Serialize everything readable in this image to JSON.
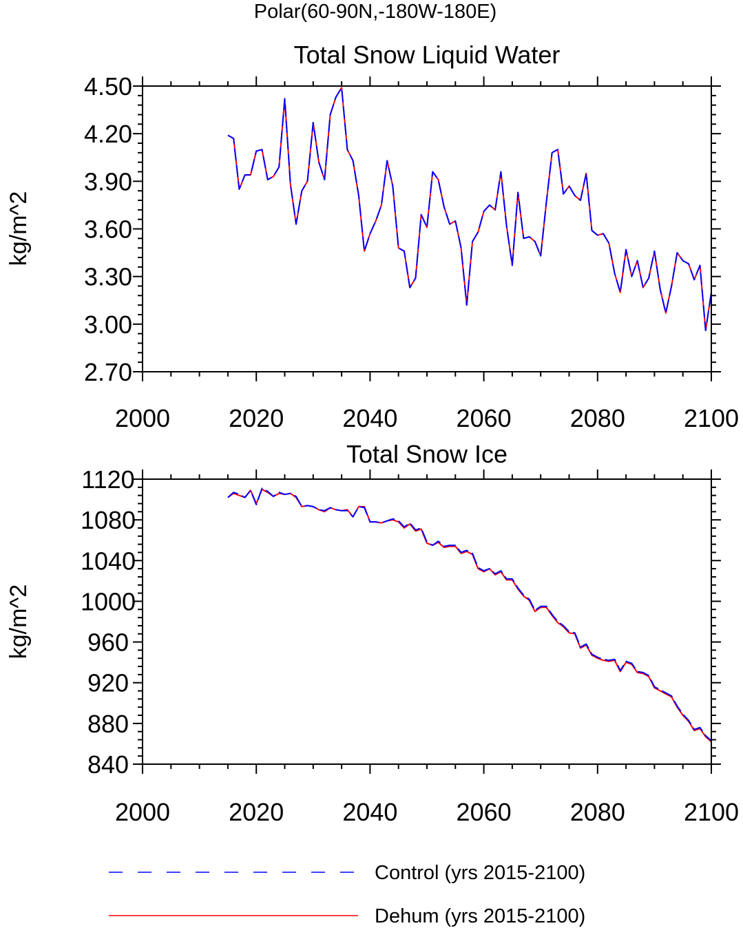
{
  "figure": {
    "main_title": "Polar(60-90N,-180W-180E)"
  },
  "chart_data": [
    {
      "type": "line",
      "title": "Total Snow Liquid Water",
      "xlabel": "",
      "ylabel": "kg/m^2",
      "xlim": [
        2000,
        2100
      ],
      "ylim": [
        2.7,
        4.5
      ],
      "xticks": [
        "2000",
        "2020",
        "2040",
        "2060",
        "2080",
        "2100"
      ],
      "yticks": [
        "2.70",
        "3.00",
        "3.30",
        "3.60",
        "3.90",
        "4.20",
        "4.50"
      ],
      "x": [
        2015,
        2016,
        2017,
        2018,
        2019,
        2020,
        2021,
        2022,
        2023,
        2024,
        2025,
        2026,
        2027,
        2028,
        2029,
        2030,
        2031,
        2032,
        2033,
        2034,
        2035,
        2036,
        2037,
        2038,
        2039,
        2040,
        2041,
        2042,
        2043,
        2044,
        2045,
        2046,
        2047,
        2048,
        2049,
        2050,
        2051,
        2052,
        2053,
        2054,
        2055,
        2056,
        2057,
        2058,
        2059,
        2060,
        2061,
        2062,
        2063,
        2064,
        2065,
        2066,
        2067,
        2068,
        2069,
        2070,
        2071,
        2072,
        2073,
        2074,
        2075,
        2076,
        2077,
        2078,
        2079,
        2080,
        2081,
        2082,
        2083,
        2084,
        2085,
        2086,
        2087,
        2088,
        2089,
        2090,
        2091,
        2092,
        2093,
        2094,
        2095,
        2096,
        2097,
        2098,
        2099,
        2100
      ],
      "series": [
        {
          "name": "Control (yrs 2015-2100)",
          "color": "#0000ff",
          "dash": "dashed",
          "values": [
            4.19,
            4.17,
            3.85,
            3.94,
            3.94,
            4.09,
            4.1,
            3.91,
            3.93,
            3.99,
            4.42,
            3.88,
            3.63,
            3.84,
            3.9,
            4.27,
            4.02,
            3.91,
            4.32,
            4.43,
            4.49,
            4.1,
            4.03,
            3.81,
            3.46,
            3.57,
            3.65,
            3.75,
            4.03,
            3.87,
            3.48,
            3.46,
            3.23,
            3.29,
            3.69,
            3.61,
            3.96,
            3.91,
            3.74,
            3.63,
            3.65,
            3.48,
            3.12,
            3.52,
            3.58,
            3.71,
            3.75,
            3.72,
            3.96,
            3.62,
            3.37,
            3.83,
            3.54,
            3.55,
            3.52,
            3.43,
            3.77,
            4.08,
            4.1,
            3.82,
            3.87,
            3.81,
            3.78,
            3.95,
            3.59,
            3.56,
            3.57,
            3.51,
            3.32,
            3.2,
            3.47,
            3.3,
            3.4,
            3.23,
            3.29,
            3.46,
            3.22,
            3.07,
            3.24,
            3.45,
            3.4,
            3.38,
            3.28,
            3.37,
            2.96,
            3.2
          ]
        },
        {
          "name": "Dehum (yrs 2015-2100)",
          "color": "#ff0000",
          "dash": "solid",
          "values": [
            4.19,
            4.17,
            3.85,
            3.94,
            3.94,
            4.09,
            4.1,
            3.91,
            3.93,
            3.99,
            4.42,
            3.88,
            3.63,
            3.84,
            3.9,
            4.27,
            4.02,
            3.91,
            4.32,
            4.43,
            4.49,
            4.1,
            4.03,
            3.81,
            3.46,
            3.57,
            3.65,
            3.75,
            4.03,
            3.87,
            3.48,
            3.46,
            3.23,
            3.29,
            3.69,
            3.61,
            3.96,
            3.91,
            3.74,
            3.63,
            3.65,
            3.48,
            3.12,
            3.52,
            3.58,
            3.71,
            3.75,
            3.72,
            3.96,
            3.62,
            3.37,
            3.83,
            3.54,
            3.55,
            3.52,
            3.43,
            3.77,
            4.08,
            4.1,
            3.82,
            3.87,
            3.81,
            3.78,
            3.95,
            3.59,
            3.56,
            3.57,
            3.51,
            3.32,
            3.2,
            3.47,
            3.3,
            3.4,
            3.23,
            3.29,
            3.46,
            3.22,
            3.07,
            3.24,
            3.45,
            3.4,
            3.38,
            3.28,
            3.37,
            2.96,
            3.2
          ]
        }
      ]
    },
    {
      "type": "line",
      "title": "Total Snow Ice",
      "xlabel": "",
      "ylabel": "kg/m^2",
      "xlim": [
        2000,
        2100
      ],
      "ylim": [
        840,
        1120
      ],
      "xticks": [
        "2000",
        "2020",
        "2040",
        "2060",
        "2080",
        "2100"
      ],
      "yticks": [
        "840",
        "880",
        "920",
        "960",
        "1000",
        "1040",
        "1080",
        "1120"
      ],
      "x": [
        2015,
        2016,
        2017,
        2018,
        2019,
        2020,
        2021,
        2022,
        2023,
        2024,
        2025,
        2026,
        2027,
        2028,
        2029,
        2030,
        2031,
        2032,
        2033,
        2034,
        2035,
        2036,
        2037,
        2038,
        2039,
        2040,
        2041,
        2042,
        2043,
        2044,
        2045,
        2046,
        2047,
        2048,
        2049,
        2050,
        2051,
        2052,
        2053,
        2054,
        2055,
        2056,
        2057,
        2058,
        2059,
        2060,
        2061,
        2062,
        2063,
        2064,
        2065,
        2066,
        2067,
        2068,
        2069,
        2070,
        2071,
        2072,
        2073,
        2074,
        2075,
        2076,
        2077,
        2078,
        2079,
        2080,
        2081,
        2082,
        2083,
        2084,
        2085,
        2086,
        2087,
        2088,
        2089,
        2090,
        2091,
        2092,
        2093,
        2094,
        2095,
        2096,
        2097,
        2098,
        2099,
        2100
      ],
      "series": [
        {
          "name": "Control (yrs 2015-2100)",
          "color": "#0000ff",
          "dash": "dashed",
          "values": [
            1102,
            1107,
            1105,
            1102,
            1109,
            1095,
            1111,
            1108,
            1103,
            1107,
            1105,
            1106,
            1103,
            1093,
            1094,
            1093,
            1090,
            1089,
            1092,
            1090,
            1089,
            1089,
            1083,
            1093,
            1092,
            1078,
            1078,
            1077,
            1079,
            1081,
            1079,
            1073,
            1077,
            1070,
            1072,
            1058,
            1055,
            1059,
            1054,
            1055,
            1055,
            1048,
            1050,
            1047,
            1033,
            1030,
            1032,
            1027,
            1030,
            1022,
            1022,
            1013,
            1006,
            1002,
            991,
            995,
            995,
            987,
            980,
            976,
            970,
            969,
            955,
            958,
            948,
            945,
            943,
            942,
            943,
            932,
            941,
            939,
            931,
            930,
            927,
            916,
            913,
            910,
            907,
            897,
            889,
            883,
            874,
            876,
            868,
            863
          ]
        },
        {
          "name": "Dehum (yrs 2015-2100)",
          "color": "#ff0000",
          "dash": "solid",
          "values": [
            1102,
            1106,
            1104,
            1102,
            1109,
            1096,
            1110,
            1107,
            1103,
            1106,
            1105,
            1106,
            1102,
            1093,
            1094,
            1093,
            1090,
            1088,
            1092,
            1090,
            1089,
            1090,
            1083,
            1093,
            1093,
            1078,
            1078,
            1077,
            1079,
            1080,
            1078,
            1072,
            1076,
            1069,
            1071,
            1057,
            1055,
            1058,
            1053,
            1054,
            1054,
            1047,
            1049,
            1046,
            1032,
            1029,
            1032,
            1026,
            1029,
            1021,
            1021,
            1012,
            1005,
            1001,
            990,
            994,
            994,
            986,
            979,
            975,
            969,
            968,
            954,
            957,
            947,
            944,
            942,
            941,
            942,
            931,
            940,
            938,
            930,
            929,
            926,
            915,
            912,
            909,
            906,
            896,
            888,
            882,
            873,
            875,
            867,
            862
          ]
        }
      ]
    }
  ],
  "legend": {
    "entries": [
      {
        "label": "Control (yrs 2015-2100)",
        "color": "#0000ff",
        "dash": "dashed"
      },
      {
        "label": "Dehum (yrs 2015-2100)",
        "color": "#ff0000",
        "dash": "solid"
      }
    ]
  }
}
